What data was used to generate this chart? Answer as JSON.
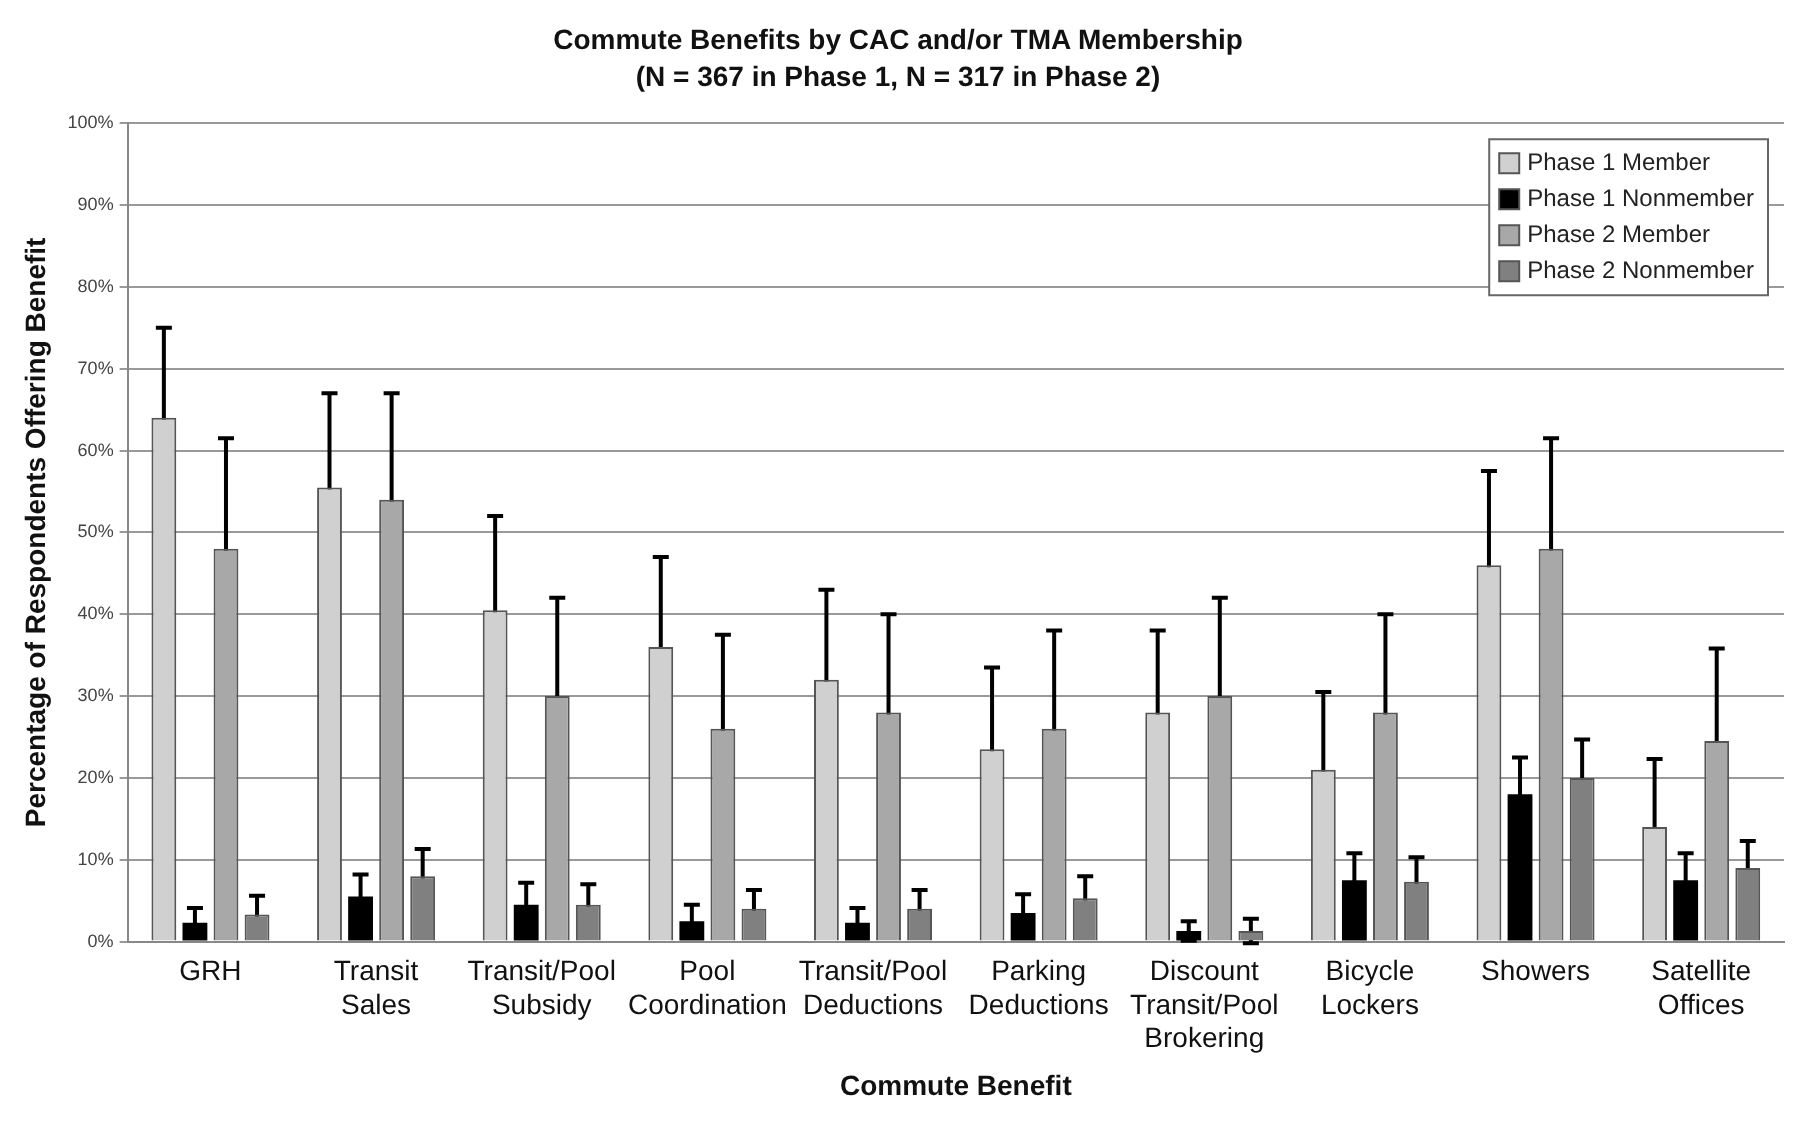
{
  "chart_data": {
    "type": "bar",
    "title": "Commute Benefits by CAC and/or TMA Membership",
    "subtitle": "(N = 367 in Phase 1, N = 317 in Phase 2)",
    "xlabel": "Commute Benefit",
    "ylabel": "Percentage of Respondents Offering Benefit",
    "categories": [
      "GRH",
      "Transit Sales",
      "Transit/Pool Subsidy",
      "Pool Coordination",
      "Transit/Pool Deductions",
      "Parking Deductions",
      "Discount Transit/Pool Brokering",
      "Bicycle Lockers",
      "Showers",
      "Satellite Offices"
    ],
    "series": [
      {
        "name": "Phase 1 Member",
        "color": "#d0d0d0",
        "values": [
          64,
          55.5,
          40.5,
          36,
          32,
          23.5,
          28,
          21,
          46,
          14
        ],
        "errors": [
          11,
          11.5,
          11.5,
          11,
          11,
          10,
          10,
          9.5,
          11.5,
          8.3
        ]
      },
      {
        "name": "Phase 1 Nonmember",
        "color": "#000000",
        "values": [
          2.3,
          5.5,
          4.5,
          2.5,
          2.3,
          3.5,
          1.3,
          7.5,
          18,
          7.5
        ],
        "errors": [
          1.8,
          2.7,
          2.7,
          2,
          1.8,
          2.3,
          1.2,
          3.3,
          4.5,
          3.3
        ]
      },
      {
        "name": "Phase 2 Member",
        "color": "#a8a8a8",
        "values": [
          48,
          54,
          30,
          26,
          28,
          26,
          30,
          28,
          48,
          24.5
        ],
        "errors": [
          13.5,
          13,
          12,
          11.5,
          12,
          12,
          12,
          12,
          13.5,
          11.3
        ]
      },
      {
        "name": "Phase 2 Nonmember",
        "color": "#808080",
        "values": [
          3.3,
          8,
          4.5,
          4,
          4,
          5.3,
          1.3,
          7.3,
          20,
          9
        ],
        "errors": [
          2.3,
          3.3,
          2.5,
          2.3,
          2.3,
          2.7,
          1.5,
          3,
          4.7,
          3.3
        ]
      }
    ],
    "ylim": [
      0,
      100
    ],
    "yticks": [
      {
        "value": 0,
        "label": "0%"
      },
      {
        "value": 10,
        "label": "10%"
      },
      {
        "value": 20,
        "label": "20%"
      },
      {
        "value": 30,
        "label": "30%"
      },
      {
        "value": 40,
        "label": "40%"
      },
      {
        "value": 50,
        "label": "50%"
      },
      {
        "value": 60,
        "label": "60%"
      },
      {
        "value": 70,
        "label": "70%"
      },
      {
        "value": 80,
        "label": "80%"
      },
      {
        "value": 90,
        "label": "90%"
      },
      {
        "value": 100,
        "label": "100%"
      }
    ],
    "grid": "y",
    "legend": "top right"
  }
}
